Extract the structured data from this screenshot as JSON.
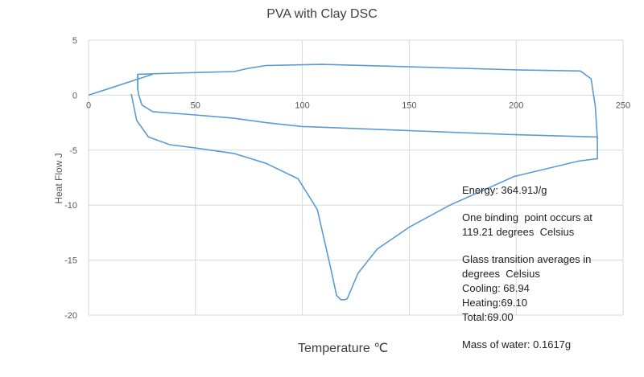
{
  "chart_data": {
    "type": "line",
    "title": "PVA with Clay DSC",
    "xlabel": "Temperature ℃",
    "ylabel": "Heat Flow J",
    "xlim": [
      0,
      250
    ],
    "ylim": [
      -20,
      5
    ],
    "xticks": [
      0,
      50,
      100,
      150,
      200,
      250
    ],
    "yticks": [
      5,
      0,
      -5,
      -10,
      -15,
      -20
    ],
    "grid": true,
    "line_color": "#5B9BD5",
    "series": [
      {
        "x": [
          0,
          30
        ],
        "y": [
          0,
          1.9
        ]
      },
      {
        "x": [
          23,
          23,
          40,
          68,
          75,
          83,
          109,
          147,
          200,
          230,
          235,
          237,
          238
        ],
        "y": [
          0.5,
          1.9,
          2.0,
          2.15,
          2.45,
          2.7,
          2.8,
          2.6,
          2.3,
          2.2,
          1.5,
          -1,
          -4
        ]
      },
      {
        "x": [
          238,
          200,
          147,
          100,
          83,
          68,
          50,
          30,
          25,
          23.5,
          23,
          23
        ],
        "y": [
          -3.8,
          -3.6,
          -3.2,
          -2.85,
          -2.5,
          -2.1,
          -1.8,
          -1.5,
          -0.9,
          0,
          0.6,
          1.9
        ]
      },
      {
        "x": [
          20,
          22.5,
          28,
          38,
          50,
          68,
          83,
          98,
          107,
          113,
          116,
          118,
          120,
          121,
          126,
          135,
          150,
          169,
          199,
          229,
          237,
          238,
          238
        ],
        "y": [
          0.1,
          -2.3,
          -3.8,
          -4.5,
          -4.8,
          -5.3,
          -6.2,
          -7.6,
          -10.4,
          -15.5,
          -18.2,
          -18.6,
          -18.6,
          -18.5,
          -16.2,
          -14,
          -12,
          -10,
          -7.4,
          -6,
          -5.8,
          -5.8,
          -3.8
        ]
      }
    ],
    "annotations": [
      "Energy: 364.91J/g",
      "One binding  point occurs at\n119.21 degrees  Celsius",
      "Glass transition averages in\ndegrees  Celsius\nCooling: 68.94\nHeating:69.10\nTotal:69.00",
      "Mass of water: 0.1617g"
    ]
  }
}
